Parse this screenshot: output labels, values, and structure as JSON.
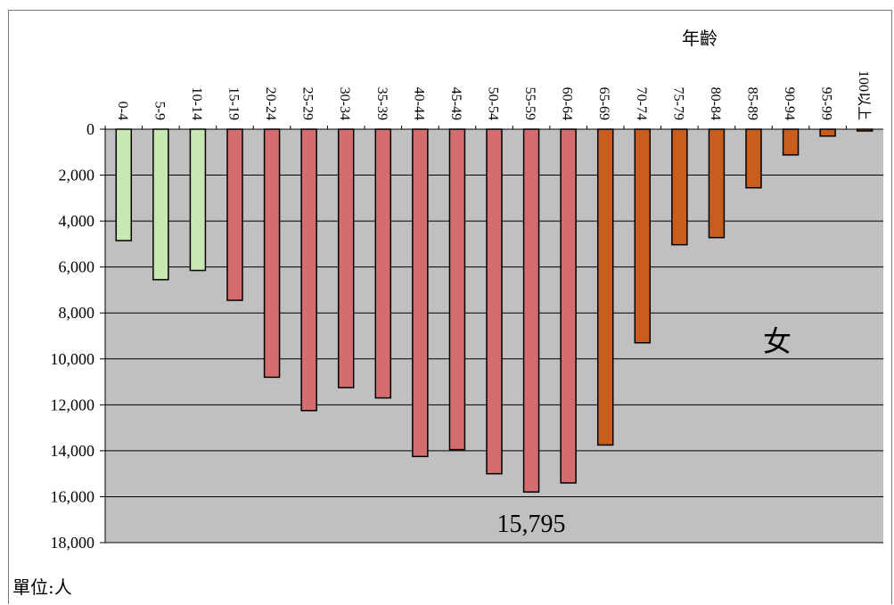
{
  "chart_data": {
    "type": "bar",
    "orientation": "inverted",
    "categories": [
      "0-4",
      "5-9",
      "10-14",
      "15-19",
      "20-24",
      "25-29",
      "30-34",
      "35-39",
      "40-44",
      "45-49",
      "50-54",
      "55-59",
      "60-64",
      "65-69",
      "70-74",
      "75-79",
      "80-84",
      "85-89",
      "90-94",
      "95-99",
      "100以上"
    ],
    "values": [
      4850,
      6550,
      6150,
      7450,
      10800,
      12250,
      11250,
      11700,
      14250,
      13950,
      15000,
      15795,
      15400,
      13750,
      9300,
      5030,
      4720,
      2550,
      1120,
      300,
      60
    ],
    "bar_colors": [
      "#c9e7b3",
      "#c9e7b3",
      "#c9e7b3",
      "#d36d6f",
      "#d36d6f",
      "#d36d6f",
      "#d36d6f",
      "#d36d6f",
      "#d36d6f",
      "#d36d6f",
      "#d36d6f",
      "#d36d6f",
      "#d36d6f",
      "#c85d1e",
      "#c85d1e",
      "#c85d1e",
      "#c85d1e",
      "#c85d1e",
      "#c85d1e",
      "#c85d1e",
      "#c85d1e"
    ],
    "ylim": [
      0,
      18000
    ],
    "yticks": [
      "0",
      "2,000",
      "4,000",
      "6,000",
      "8,000",
      "10,000",
      "12,000",
      "14,000",
      "16,000",
      "18,000"
    ],
    "xlabel": "年齡",
    "ylabel": "",
    "grid": true,
    "plot_background": "#c0c0c0",
    "annotations": {
      "series_label": "女",
      "max_value_label": "15,795"
    },
    "unit_note": "單位:人"
  }
}
